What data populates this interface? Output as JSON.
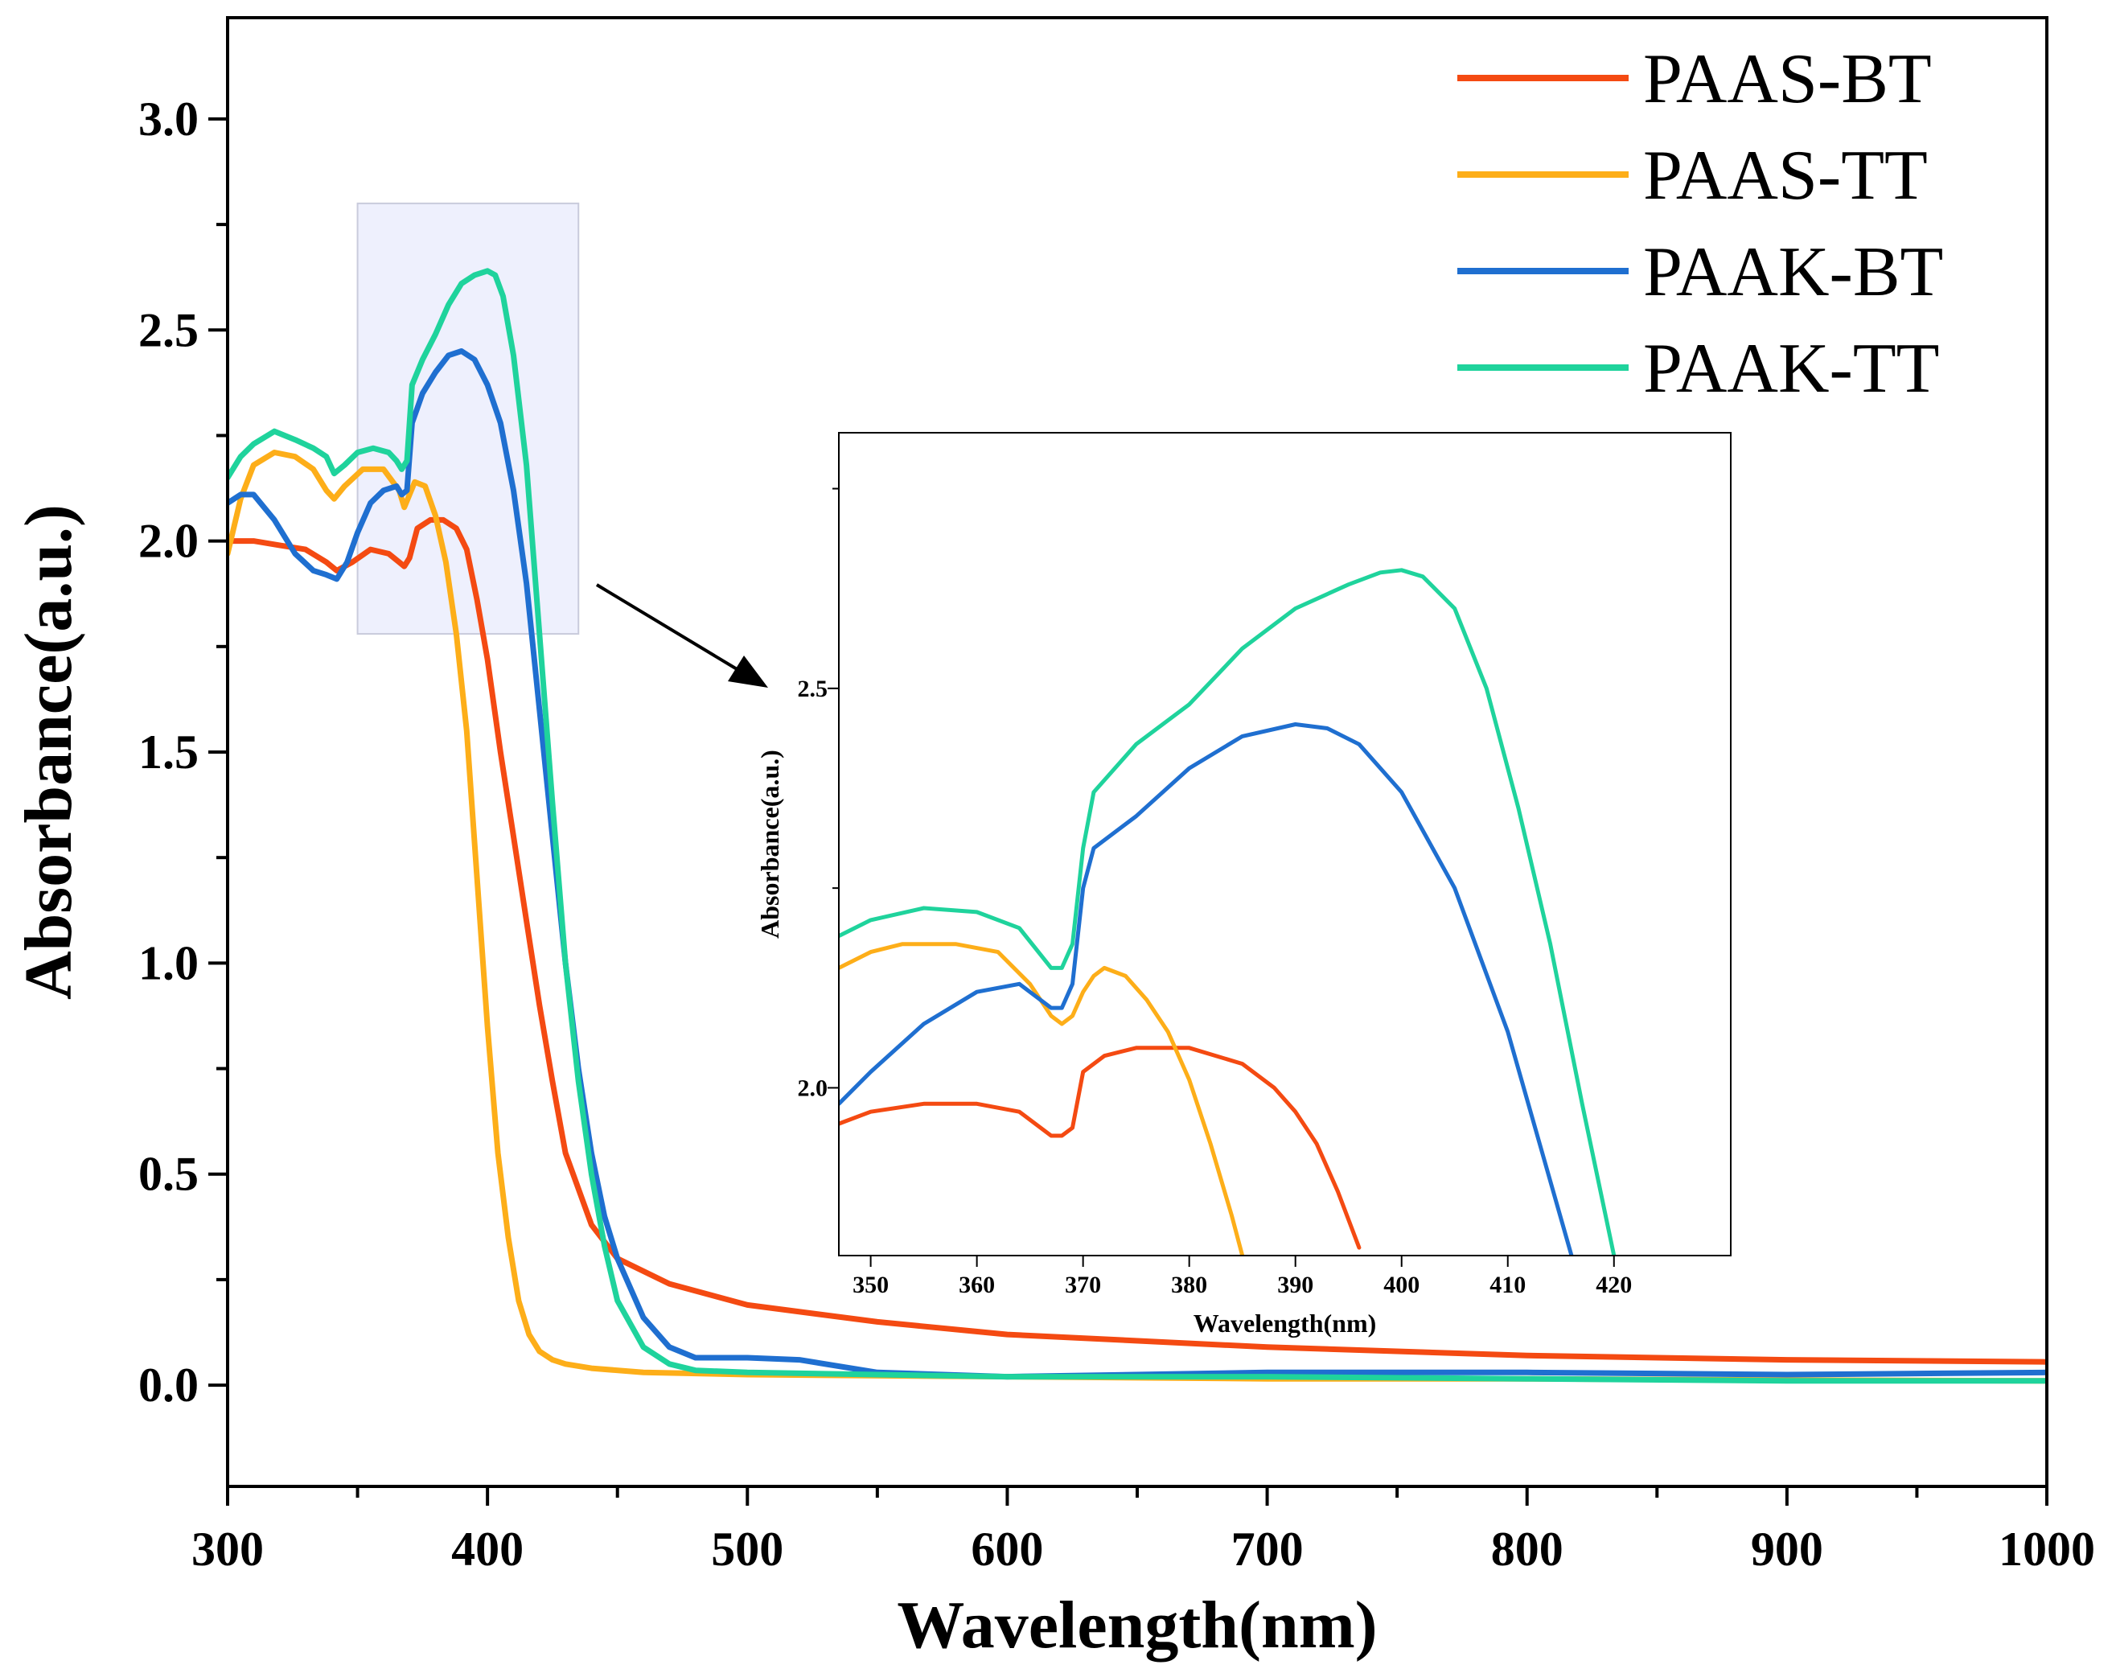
{
  "colors": {
    "PAAS-BT": "#f44a12",
    "PAAS-TT": "#fdae19",
    "PAAK-BT": "#1f6fd0",
    "PAAK-TT": "#1fd39c",
    "highlight_fill": "#eef0fd",
    "highlight_stroke": "#c9cbdc",
    "arrow": "#000000"
  },
  "chart_data": [
    {
      "id": "main",
      "type": "line",
      "xlabel": "Wavelength(nm)",
      "ylabel": "Absorbance(a.u.)",
      "xlim": [
        300,
        1000
      ],
      "ylim": [
        -0.24,
        3.24
      ],
      "x_ticks": [
        300,
        400,
        500,
        600,
        700,
        800,
        900,
        1000
      ],
      "x_tick_labels": [
        "300",
        "400",
        "500",
        "600",
        "700",
        "800",
        "900",
        "1000"
      ],
      "y_ticks": [
        0.0,
        0.5,
        1.0,
        1.5,
        2.0,
        2.5,
        3.0
      ],
      "y_tick_labels": [
        "0.0",
        "0.5",
        "1.0",
        "1.5",
        "2.0",
        "2.5",
        "3.0"
      ],
      "legend_position": "top-right",
      "zoom_region": {
        "x": [
          350,
          435
        ],
        "y": [
          1.78,
          2.8
        ]
      },
      "series": [
        {
          "name": "PAAS-BT",
          "x": [
            300,
            305,
            310,
            320,
            330,
            338,
            342,
            348,
            355,
            362,
            366,
            368,
            370,
            373,
            378,
            383,
            388,
            392,
            396,
            400,
            405,
            410,
            415,
            420,
            425,
            430,
            440,
            450,
            470,
            500,
            550,
            600,
            700,
            800,
            900,
            1000
          ],
          "y": [
            2.0,
            2.0,
            2.0,
            1.99,
            1.98,
            1.95,
            1.93,
            1.95,
            1.98,
            1.97,
            1.95,
            1.94,
            1.96,
            2.03,
            2.05,
            2.05,
            2.03,
            1.98,
            1.86,
            1.72,
            1.5,
            1.3,
            1.1,
            0.9,
            0.72,
            0.55,
            0.38,
            0.3,
            0.24,
            0.19,
            0.15,
            0.12,
            0.09,
            0.07,
            0.06,
            0.055
          ]
        },
        {
          "name": "PAAS-TT",
          "x": [
            300,
            305,
            310,
            318,
            326,
            333,
            338,
            341,
            345,
            352,
            360,
            366,
            368,
            370,
            372,
            376,
            380,
            384,
            388,
            392,
            396,
            400,
            404,
            408,
            412,
            416,
            420,
            425,
            430,
            440,
            460,
            500,
            600,
            700,
            800,
            900,
            1000
          ],
          "y": [
            1.97,
            2.1,
            2.18,
            2.21,
            2.2,
            2.17,
            2.12,
            2.1,
            2.13,
            2.17,
            2.17,
            2.12,
            2.08,
            2.11,
            2.14,
            2.13,
            2.06,
            1.95,
            1.78,
            1.55,
            1.2,
            0.85,
            0.55,
            0.35,
            0.2,
            0.12,
            0.08,
            0.06,
            0.05,
            0.04,
            0.03,
            0.025,
            0.02,
            0.015,
            0.015,
            0.012,
            0.01
          ]
        },
        {
          "name": "PAAK-BT",
          "x": [
            300,
            305,
            310,
            318,
            326,
            333,
            338,
            342,
            346,
            350,
            355,
            360,
            365,
            367,
            369,
            371,
            375,
            380,
            385,
            390,
            395,
            400,
            405,
            410,
            415,
            420,
            425,
            430,
            435,
            440,
            445,
            450,
            460,
            470,
            480,
            500,
            520,
            550,
            600,
            700,
            800,
            900,
            1000
          ],
          "y": [
            2.09,
            2.11,
            2.11,
            2.05,
            1.97,
            1.93,
            1.92,
            1.91,
            1.95,
            2.02,
            2.09,
            2.12,
            2.13,
            2.11,
            2.12,
            2.28,
            2.35,
            2.4,
            2.44,
            2.45,
            2.43,
            2.37,
            2.28,
            2.12,
            1.9,
            1.6,
            1.3,
            1.0,
            0.75,
            0.55,
            0.4,
            0.3,
            0.16,
            0.09,
            0.065,
            0.065,
            0.06,
            0.03,
            0.02,
            0.03,
            0.03,
            0.025,
            0.03
          ]
        },
        {
          "name": "PAAK-TT",
          "x": [
            300,
            305,
            310,
            318,
            326,
            333,
            338,
            341,
            345,
            350,
            356,
            362,
            365,
            367,
            369,
            371,
            375,
            380,
            385,
            390,
            395,
            400,
            403,
            406,
            410,
            415,
            420,
            425,
            430,
            435,
            440,
            445,
            450,
            460,
            470,
            480,
            500,
            550,
            600,
            700,
            800,
            900,
            1000
          ],
          "y": [
            2.15,
            2.2,
            2.23,
            2.26,
            2.24,
            2.22,
            2.2,
            2.16,
            2.18,
            2.21,
            2.22,
            2.21,
            2.19,
            2.17,
            2.19,
            2.37,
            2.43,
            2.49,
            2.56,
            2.61,
            2.63,
            2.64,
            2.63,
            2.58,
            2.44,
            2.18,
            1.78,
            1.38,
            1.0,
            0.72,
            0.5,
            0.33,
            0.2,
            0.09,
            0.05,
            0.035,
            0.03,
            0.025,
            0.02,
            0.02,
            0.015,
            0.01,
            0.01
          ]
        }
      ]
    },
    {
      "id": "inset",
      "type": "line",
      "xlabel": "Wavelength(nm)",
      "ylabel": "Absorbance(a.u.)",
      "xlim": [
        347,
        431
      ],
      "ylim": [
        1.79,
        2.82
      ],
      "x_ticks": [
        350,
        360,
        370,
        380,
        390,
        400,
        410,
        420
      ],
      "x_tick_labels": [
        "350",
        "360",
        "370",
        "380",
        "390",
        "400",
        "410",
        "420"
      ],
      "y_ticks": [
        2.0,
        2.5
      ],
      "y_tick_labels": [
        "2.0",
        "2.5"
      ],
      "series": [
        {
          "name": "PAAS-BT",
          "x": [
            347,
            350,
            355,
            360,
            364,
            367,
            368,
            369,
            370,
            372,
            375,
            380,
            385,
            388,
            390,
            392,
            394,
            396
          ],
          "y": [
            1.955,
            1.97,
            1.98,
            1.98,
            1.97,
            1.94,
            1.94,
            1.95,
            2.02,
            2.04,
            2.05,
            2.05,
            2.03,
            2.0,
            1.97,
            1.93,
            1.87,
            1.8
          ]
        },
        {
          "name": "PAAS-TT",
          "x": [
            347,
            350,
            353,
            358,
            362,
            365,
            367,
            368,
            369,
            370,
            371,
            372,
            374,
            376,
            378,
            380,
            382,
            384,
            385
          ],
          "y": [
            2.15,
            2.17,
            2.18,
            2.18,
            2.17,
            2.13,
            2.09,
            2.08,
            2.09,
            2.12,
            2.14,
            2.15,
            2.14,
            2.11,
            2.07,
            2.01,
            1.93,
            1.84,
            1.79
          ]
        },
        {
          "name": "PAAK-BT",
          "x": [
            347,
            350,
            355,
            360,
            364,
            367,
            368,
            369,
            370,
            371,
            375,
            380,
            385,
            390,
            393,
            396,
            400,
            405,
            410,
            413,
            416
          ],
          "y": [
            1.98,
            2.02,
            2.08,
            2.12,
            2.13,
            2.1,
            2.1,
            2.13,
            2.25,
            2.3,
            2.34,
            2.4,
            2.44,
            2.455,
            2.45,
            2.43,
            2.37,
            2.25,
            2.07,
            1.93,
            1.79
          ]
        },
        {
          "name": "PAAK-TT",
          "x": [
            347,
            350,
            355,
            360,
            364,
            367,
            368,
            369,
            370,
            371,
            375,
            380,
            385,
            390,
            395,
            398,
            400,
            402,
            405,
            408,
            411,
            414,
            417,
            420
          ],
          "y": [
            2.19,
            2.21,
            2.225,
            2.22,
            2.2,
            2.15,
            2.15,
            2.18,
            2.3,
            2.37,
            2.43,
            2.48,
            2.55,
            2.6,
            2.63,
            2.645,
            2.648,
            2.64,
            2.6,
            2.5,
            2.35,
            2.18,
            1.98,
            1.79
          ]
        }
      ]
    }
  ]
}
